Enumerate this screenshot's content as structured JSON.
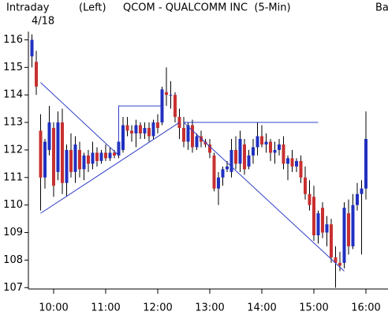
{
  "chart_data": {
    "type": "candlestick",
    "period_label": "Intraday",
    "date_label": "4/18",
    "axis_side_label": "(Left)",
    "title": "QCOM - QUALCOMM INC  (5-Min)",
    "cut_label": "Ba",
    "x": [
      "9:35",
      "9:40",
      "9:45",
      "9:50",
      "9:55",
      "10:00",
      "10:05",
      "10:10",
      "10:15",
      "10:20",
      "10:25",
      "10:30",
      "10:35",
      "10:40",
      "10:45",
      "10:50",
      "10:55",
      "11:00",
      "11:05",
      "11:10",
      "11:15",
      "11:20",
      "11:25",
      "11:30",
      "11:35",
      "11:40",
      "11:45",
      "11:50",
      "11:55",
      "12:00",
      "12:05",
      "12:10",
      "12:15",
      "12:20",
      "12:25",
      "12:30",
      "12:35",
      "12:40",
      "12:45",
      "12:50",
      "12:55",
      "13:00",
      "13:05",
      "13:10",
      "13:15",
      "13:20",
      "13:25",
      "13:30",
      "13:35",
      "13:40",
      "13:45",
      "13:50",
      "13:55",
      "14:00",
      "14:05",
      "14:10",
      "14:15",
      "14:20",
      "14:25",
      "14:30",
      "14:35",
      "14:40",
      "14:45",
      "14:50",
      "14:55",
      "15:00",
      "15:05",
      "15:10",
      "15:15",
      "15:20",
      "15:25",
      "15:30",
      "15:35",
      "15:40",
      "15:45",
      "15:50",
      "15:55",
      "16:00"
    ],
    "open": [
      115.4,
      115.2,
      112.7,
      111.0,
      112.0,
      112.8,
      111.2,
      113.0,
      110.8,
      112.0,
      111.2,
      112.0,
      111.3,
      111.8,
      111.5,
      111.9,
      111.6,
      111.9,
      111.7,
      111.9,
      111.8,
      112.0,
      112.9,
      112.7,
      112.6,
      112.9,
      112.6,
      112.8,
      112.5,
      113.0,
      113.0,
      114.1,
      114.0,
      114.0,
      113.2,
      112.8,
      112.3,
      112.9,
      112.1,
      112.5,
      112.3,
      112.2,
      111.8,
      110.6,
      111.0,
      111.3,
      111.2,
      112.0,
      111.5,
      112.2,
      111.4,
      111.8,
      112.1,
      112.5,
      112.2,
      112.3,
      111.9,
      112.0,
      112.2,
      111.5,
      111.7,
      111.4,
      111.6,
      111.0,
      110.4,
      110.3,
      108.9,
      109.9,
      109.0,
      109.3,
      108.1,
      107.9,
      107.9,
      109.7,
      108.5,
      110.0,
      110.4,
      110.6
    ],
    "high": [
      116.2,
      115.6,
      113.3,
      112.4,
      113.6,
      113.0,
      113.4,
      113.5,
      112.2,
      112.6,
      112.5,
      112.3,
      111.9,
      112.0,
      112.3,
      112.1,
      112.0,
      112.2,
      112.1,
      112.0,
      112.4,
      113.2,
      113.2,
      112.9,
      113.1,
      113.0,
      113.0,
      113.0,
      113.1,
      113.3,
      114.3,
      115.0,
      114.5,
      114.1,
      113.5,
      113.2,
      113.0,
      113.1,
      112.6,
      112.7,
      112.4,
      112.4,
      111.9,
      111.2,
      111.4,
      111.6,
      112.4,
      112.5,
      112.7,
      112.4,
      112.0,
      112.4,
      113.0,
      112.9,
      112.6,
      112.4,
      112.3,
      112.4,
      112.5,
      111.8,
      112.0,
      111.7,
      111.8,
      111.4,
      110.9,
      110.7,
      109.8,
      110.1,
      109.6,
      109.5,
      108.5,
      108.3,
      110.1,
      110.2,
      110.4,
      110.8,
      110.9,
      113.4
    ],
    "low": [
      115.0,
      114.0,
      109.8,
      110.6,
      111.8,
      110.3,
      110.9,
      110.4,
      110.3,
      111.0,
      110.8,
      111.0,
      110.9,
      111.2,
      111.3,
      111.4,
      111.5,
      111.6,
      111.6,
      111.7,
      111.7,
      111.9,
      112.5,
      112.3,
      112.1,
      112.4,
      112.4,
      112.3,
      112.4,
      112.6,
      112.9,
      113.6,
      113.5,
      113.0,
      112.4,
      112.1,
      112.0,
      111.9,
      112.0,
      112.1,
      112.1,
      111.7,
      110.5,
      110.0,
      110.7,
      111.2,
      111.0,
      111.3,
      111.2,
      111.1,
      111.3,
      111.5,
      111.8,
      112.1,
      111.9,
      111.6,
      111.5,
      111.8,
      111.3,
      110.9,
      111.2,
      111.2,
      110.8,
      110.2,
      109.8,
      108.7,
      108.6,
      108.8,
      108.5,
      107.9,
      107.0,
      107.6,
      107.7,
      108.2,
      108.4,
      109.8,
      108.2,
      110.2
    ],
    "close": [
      116.0,
      114.3,
      111.0,
      112.3,
      113.0,
      110.7,
      113.0,
      110.8,
      112.0,
      111.2,
      112.2,
      111.3,
      111.8,
      111.5,
      111.9,
      111.6,
      111.9,
      111.7,
      111.9,
      111.8,
      112.3,
      112.9,
      112.7,
      112.6,
      112.9,
      112.6,
      112.8,
      112.5,
      113.0,
      112.8,
      114.2,
      114.0,
      114.0,
      113.2,
      112.8,
      112.3,
      112.9,
      112.1,
      112.5,
      112.3,
      112.2,
      111.9,
      110.6,
      111.0,
      111.3,
      111.4,
      112.0,
      111.5,
      112.4,
      111.3,
      111.8,
      112.1,
      112.5,
      112.2,
      112.3,
      111.9,
      112.0,
      112.2,
      111.5,
      111.7,
      111.4,
      111.6,
      111.0,
      110.4,
      110.0,
      108.9,
      109.7,
      109.0,
      109.3,
      108.1,
      107.9,
      107.8,
      109.9,
      108.5,
      110.0,
      110.4,
      110.6,
      112.4
    ],
    "up_color": "#2030c0",
    "down_color": "#c83030",
    "line_color": "#3040c8",
    "trendlines": [
      {
        "x": [
          "9:45",
          "11:15"
        ],
        "y": [
          114.45,
          111.8
        ]
      },
      {
        "x": [
          "9:45",
          "12:25"
        ],
        "y": [
          109.7,
          113.0
        ]
      },
      {
        "x": [
          "11:15",
          "11:15",
          "12:05"
        ],
        "y": [
          111.9,
          113.6,
          113.6
        ]
      },
      {
        "x": [
          "12:30",
          "15:05"
        ],
        "y": [
          113.0,
          113.0
        ]
      },
      {
        "x": [
          "12:30",
          "15:35"
        ],
        "y": [
          113.0,
          107.6
        ]
      }
    ],
    "ylim": [
      106.95,
      116.3
    ],
    "yticks": [
      107,
      108,
      109,
      110,
      111,
      112,
      113,
      114,
      115,
      116
    ],
    "xticks": [
      "10:00",
      "11:00",
      "12:00",
      "13:00",
      "14:00",
      "15:00",
      "16:00"
    ]
  }
}
